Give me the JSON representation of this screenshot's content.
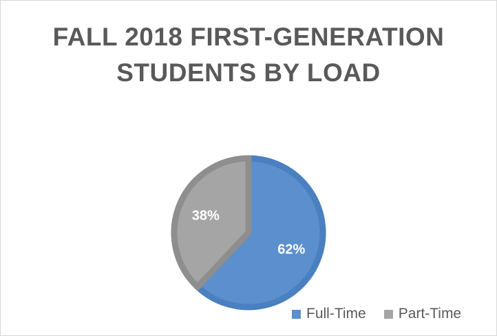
{
  "chart_data": {
    "type": "pie",
    "title_lines": [
      "FALL 2018 FIRST-GENERATION",
      "STUDENTS BY LOAD"
    ],
    "slices": [
      {
        "label": "Full-Time",
        "value": 62,
        "display": "62%",
        "color": "#5b8fcd",
        "stroke": "#4a7fc0"
      },
      {
        "label": "Part-Time",
        "value": 38,
        "display": "38%",
        "color": "#a5a5a5",
        "stroke": "#8e8e8e"
      }
    ],
    "legend_position": "bottom-right",
    "label_color": "#ffffff"
  }
}
